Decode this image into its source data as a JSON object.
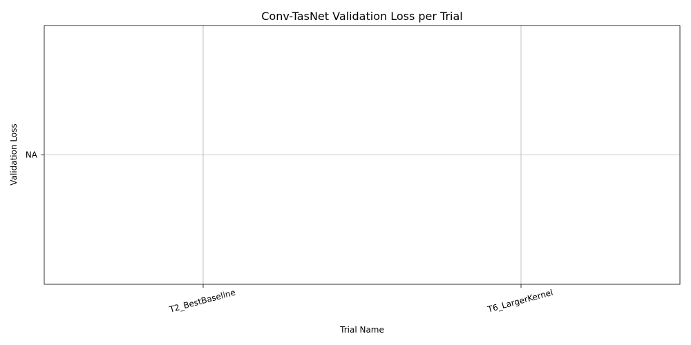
{
  "chart_data": {
    "type": "line",
    "title": "Conv-TasNet Validation Loss per Trial",
    "xlabel": "Trial Name",
    "ylabel": "Validation Loss",
    "categories": [
      "T2_BestBaseline",
      "T6_LargerKernel"
    ],
    "y_tick_labels": [
      "NA"
    ],
    "series": [
      {
        "values": [
          null,
          null
        ]
      }
    ],
    "grid": true,
    "colors": {
      "grid": "#b0b0b0",
      "axis": "#000000",
      "background": "#ffffff"
    }
  }
}
